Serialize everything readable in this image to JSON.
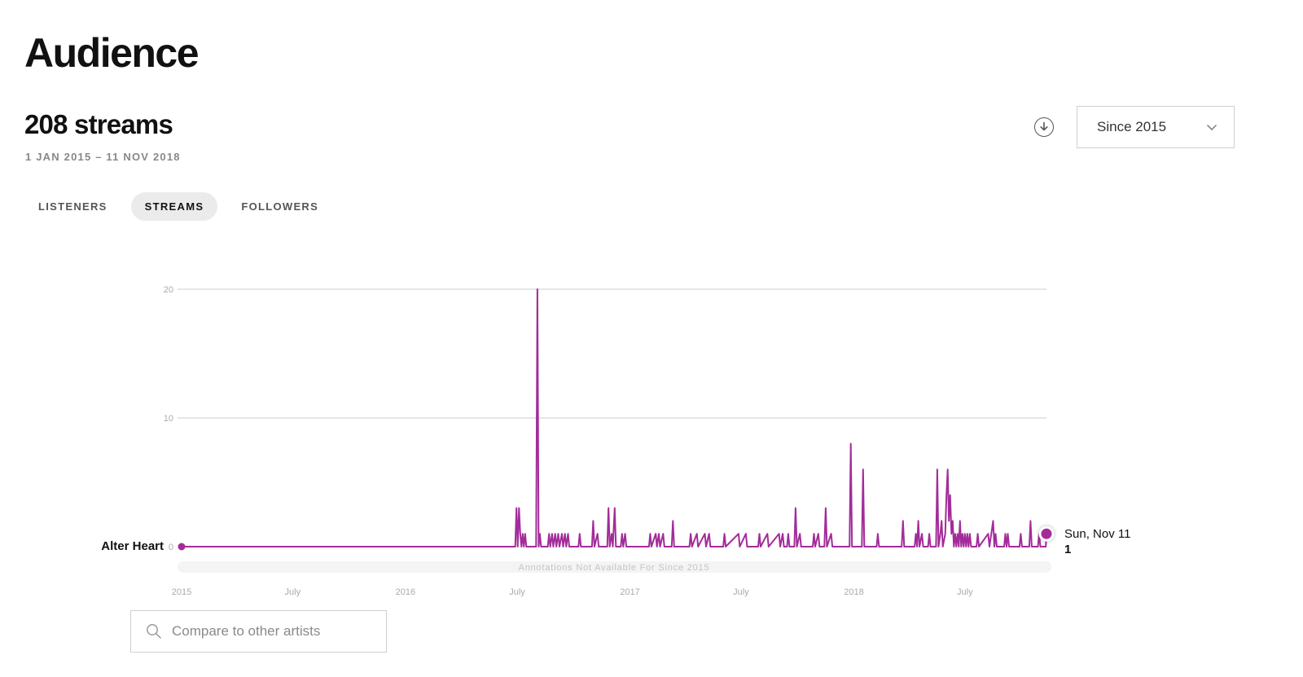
{
  "page": {
    "title": "Audience"
  },
  "summary": {
    "total": "208 streams",
    "date_range": "1 JAN 2015 – 11 NOV 2018"
  },
  "toolbar": {
    "download_icon": "download-circle-icon",
    "range_select": "Since 2015",
    "chevron_icon": "chevron-down-icon"
  },
  "tabs": [
    {
      "label": "LISTENERS",
      "active": false
    },
    {
      "label": "STREAMS",
      "active": true
    },
    {
      "label": "FOLLOWERS",
      "active": false
    }
  ],
  "compare": {
    "placeholder": "Compare to other artists",
    "icon": "search-icon"
  },
  "chart_data": {
    "type": "line",
    "series": [
      {
        "name": "Alter Heart",
        "color": "#a32c9a",
        "points": [
          [
            "2015-01-01",
            0
          ],
          [
            "2016-06-28",
            0
          ],
          [
            "2016-06-30",
            3
          ],
          [
            "2016-07-02",
            0
          ],
          [
            "2016-07-04",
            3
          ],
          [
            "2016-07-06",
            1
          ],
          [
            "2016-07-08",
            0
          ],
          [
            "2016-07-10",
            1
          ],
          [
            "2016-07-12",
            0
          ],
          [
            "2016-07-14",
            1
          ],
          [
            "2016-07-16",
            0
          ],
          [
            "2016-08-01",
            0
          ],
          [
            "2016-08-03",
            20
          ],
          [
            "2016-08-05",
            0
          ],
          [
            "2016-08-07",
            1
          ],
          [
            "2016-08-09",
            0
          ],
          [
            "2016-08-20",
            0
          ],
          [
            "2016-08-22",
            1
          ],
          [
            "2016-08-24",
            0
          ],
          [
            "2016-08-27",
            1
          ],
          [
            "2016-08-29",
            0
          ],
          [
            "2016-09-01",
            1
          ],
          [
            "2016-09-03",
            0
          ],
          [
            "2016-09-06",
            1
          ],
          [
            "2016-09-08",
            0
          ],
          [
            "2016-09-12",
            1
          ],
          [
            "2016-09-14",
            0
          ],
          [
            "2016-09-17",
            1
          ],
          [
            "2016-09-19",
            0
          ],
          [
            "2016-09-22",
            1
          ],
          [
            "2016-09-24",
            0
          ],
          [
            "2016-10-09",
            0
          ],
          [
            "2016-10-11",
            1
          ],
          [
            "2016-10-13",
            0
          ],
          [
            "2016-10-31",
            0
          ],
          [
            "2016-11-02",
            2
          ],
          [
            "2016-11-04",
            0
          ],
          [
            "2016-11-09",
            1
          ],
          [
            "2016-11-11",
            0
          ],
          [
            "2016-11-25",
            0
          ],
          [
            "2016-11-27",
            3
          ],
          [
            "2016-11-29",
            0
          ],
          [
            "2016-12-02",
            1
          ],
          [
            "2016-12-04",
            0
          ],
          [
            "2016-12-07",
            3
          ],
          [
            "2016-12-09",
            0
          ],
          [
            "2016-12-17",
            0
          ],
          [
            "2016-12-19",
            1
          ],
          [
            "2016-12-21",
            0
          ],
          [
            "2016-12-24",
            1
          ],
          [
            "2016-12-26",
            0
          ],
          [
            "2017-02-01",
            0
          ],
          [
            "2017-02-03",
            1
          ],
          [
            "2017-02-05",
            0
          ],
          [
            "2017-02-12",
            1
          ],
          [
            "2017-02-14",
            0
          ],
          [
            "2017-02-17",
            1
          ],
          [
            "2017-02-19",
            0
          ],
          [
            "2017-02-24",
            1
          ],
          [
            "2017-02-26",
            0
          ],
          [
            "2017-03-10",
            0
          ],
          [
            "2017-03-12",
            2
          ],
          [
            "2017-03-14",
            0
          ],
          [
            "2017-04-08",
            0
          ],
          [
            "2017-04-10",
            1
          ],
          [
            "2017-04-12",
            0
          ],
          [
            "2017-04-20",
            1
          ],
          [
            "2017-04-22",
            0
          ],
          [
            "2017-05-03",
            1
          ],
          [
            "2017-05-05",
            0
          ],
          [
            "2017-05-10",
            1
          ],
          [
            "2017-05-12",
            0
          ],
          [
            "2017-06-02",
            0
          ],
          [
            "2017-06-04",
            1
          ],
          [
            "2017-06-06",
            0
          ],
          [
            "2017-06-27",
            1
          ],
          [
            "2017-06-29",
            0
          ],
          [
            "2017-07-09",
            1
          ],
          [
            "2017-07-11",
            0
          ],
          [
            "2017-07-29",
            0
          ],
          [
            "2017-07-31",
            1
          ],
          [
            "2017-08-02",
            0
          ],
          [
            "2017-08-13",
            1
          ],
          [
            "2017-08-15",
            0
          ],
          [
            "2017-09-01",
            1
          ],
          [
            "2017-09-03",
            0
          ],
          [
            "2017-09-07",
            1
          ],
          [
            "2017-09-09",
            0
          ],
          [
            "2017-09-14",
            0
          ],
          [
            "2017-09-16",
            1
          ],
          [
            "2017-09-18",
            0
          ],
          [
            "2017-09-26",
            0
          ],
          [
            "2017-09-28",
            3
          ],
          [
            "2017-09-30",
            0
          ],
          [
            "2017-10-05",
            1
          ],
          [
            "2017-10-07",
            0
          ],
          [
            "2017-10-26",
            0
          ],
          [
            "2017-10-28",
            1
          ],
          [
            "2017-10-30",
            0
          ],
          [
            "2017-11-04",
            1
          ],
          [
            "2017-11-06",
            0
          ],
          [
            "2017-11-14",
            0
          ],
          [
            "2017-11-16",
            3
          ],
          [
            "2017-11-18",
            0
          ],
          [
            "2017-11-25",
            1
          ],
          [
            "2017-11-27",
            0
          ],
          [
            "2017-12-25",
            0
          ],
          [
            "2017-12-27",
            8
          ],
          [
            "2017-12-29",
            0
          ],
          [
            "2018-01-14",
            0
          ],
          [
            "2018-01-16",
            6
          ],
          [
            "2018-01-18",
            0
          ],
          [
            "2018-02-07",
            0
          ],
          [
            "2018-02-09",
            1
          ],
          [
            "2018-02-11",
            0
          ],
          [
            "2018-03-20",
            0
          ],
          [
            "2018-03-22",
            2
          ],
          [
            "2018-03-24",
            0
          ],
          [
            "2018-04-10",
            0
          ],
          [
            "2018-04-12",
            1
          ],
          [
            "2018-04-14",
            0
          ],
          [
            "2018-04-16",
            2
          ],
          [
            "2018-04-18",
            0
          ],
          [
            "2018-04-22",
            1
          ],
          [
            "2018-04-24",
            0
          ],
          [
            "2018-05-02",
            0
          ],
          [
            "2018-05-04",
            1
          ],
          [
            "2018-05-06",
            0
          ],
          [
            "2018-05-15",
            0
          ],
          [
            "2018-05-17",
            6
          ],
          [
            "2018-05-19",
            0
          ],
          [
            "2018-05-22",
            1
          ],
          [
            "2018-05-24",
            2
          ],
          [
            "2018-05-26",
            0
          ],
          [
            "2018-05-30",
            1
          ],
          [
            "2018-06-01",
            4
          ],
          [
            "2018-06-03",
            6
          ],
          [
            "2018-06-05",
            2
          ],
          [
            "2018-06-07",
            4
          ],
          [
            "2018-06-09",
            1
          ],
          [
            "2018-06-11",
            2
          ],
          [
            "2018-06-13",
            0
          ],
          [
            "2018-06-15",
            1
          ],
          [
            "2018-06-17",
            0
          ],
          [
            "2018-06-19",
            1
          ],
          [
            "2018-06-21",
            0
          ],
          [
            "2018-06-23",
            2
          ],
          [
            "2018-06-25",
            0
          ],
          [
            "2018-06-27",
            1
          ],
          [
            "2018-06-29",
            0
          ],
          [
            "2018-07-01",
            1
          ],
          [
            "2018-07-03",
            0
          ],
          [
            "2018-07-05",
            1
          ],
          [
            "2018-07-07",
            0
          ],
          [
            "2018-07-09",
            1
          ],
          [
            "2018-07-11",
            0
          ],
          [
            "2018-07-20",
            0
          ],
          [
            "2018-07-22",
            1
          ],
          [
            "2018-07-24",
            0
          ],
          [
            "2018-08-08",
            1
          ],
          [
            "2018-08-10",
            0
          ],
          [
            "2018-08-16",
            2
          ],
          [
            "2018-08-18",
            0
          ],
          [
            "2018-08-20",
            1
          ],
          [
            "2018-08-22",
            0
          ],
          [
            "2018-09-03",
            0
          ],
          [
            "2018-09-05",
            1
          ],
          [
            "2018-09-07",
            0
          ],
          [
            "2018-09-09",
            1
          ],
          [
            "2018-09-11",
            0
          ],
          [
            "2018-09-28",
            0
          ],
          [
            "2018-09-30",
            1
          ],
          [
            "2018-10-02",
            0
          ],
          [
            "2018-10-14",
            0
          ],
          [
            "2018-10-16",
            2
          ],
          [
            "2018-10-18",
            0
          ],
          [
            "2018-10-28",
            0
          ],
          [
            "2018-10-30",
            1
          ],
          [
            "2018-11-01",
            0
          ],
          [
            "2018-11-10",
            0
          ],
          [
            "2018-11-11",
            1
          ]
        ]
      }
    ],
    "x_ticks": [
      "2015",
      "July",
      "2016",
      "July",
      "2017",
      "July",
      "2018",
      "July"
    ],
    "x_tick_dates": [
      "2015-01-01",
      "2015-07-01",
      "2016-01-01",
      "2016-07-01",
      "2017-01-01",
      "2017-07-01",
      "2018-01-01",
      "2018-07-01"
    ],
    "x_range": [
      "2015-01-01",
      "2018-11-11"
    ],
    "y_ticks": [
      0,
      10,
      20
    ],
    "y_range": [
      0,
      20
    ],
    "grid": true,
    "series_label": "Alter Heart",
    "tooltip": {
      "date": "Sun, Nov 11",
      "value": "1"
    },
    "annotation_note": "Annotations Not Available For Since 2015"
  }
}
